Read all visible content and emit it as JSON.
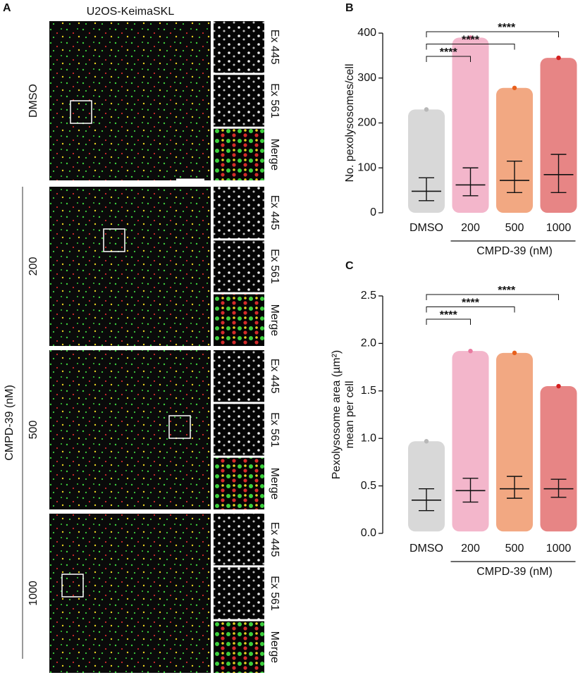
{
  "panel_a": {
    "label": "A",
    "title": "U2OS-KeimaSKL",
    "group_label": "CMPD-39 (nM)",
    "channels": [
      "Ex 445",
      "Ex 561",
      "Merge"
    ],
    "channel_colors": [
      "#2fbf2f",
      "#d42020",
      "#111111"
    ],
    "rows": [
      "DMSO",
      "200",
      "500",
      "1000"
    ]
  },
  "chart_data": [
    {
      "type": "dotplot",
      "label": "B",
      "ylabel": [
        "No. pexolysosomes/cell"
      ],
      "categories": [
        "DMSO",
        "200",
        "500",
        "1000"
      ],
      "group_label": "CMPD-39 (nM)",
      "colors": [
        "#b8b8b8",
        "#e97aa0",
        "#e8601c",
        "#d42020"
      ],
      "median": [
        48,
        62,
        72,
        85
      ],
      "q1": [
        27,
        38,
        45,
        45
      ],
      "q3": [
        78,
        100,
        115,
        130
      ],
      "min": [
        0,
        0,
        0,
        0
      ],
      "max": [
        230,
        390,
        278,
        345
      ],
      "ylim": [
        0,
        400
      ],
      "yticks": [
        0,
        100,
        200,
        300,
        400
      ],
      "comparisons": [
        {
          "groups": [
            "DMSO",
            "1000"
          ],
          "label": "****"
        },
        {
          "groups": [
            "DMSO",
            "500"
          ],
          "label": "****"
        },
        {
          "groups": [
            "DMSO",
            "200"
          ],
          "label": "****"
        }
      ]
    },
    {
      "type": "dotplot",
      "label": "C",
      "ylabel": [
        "Pexolysosome area (µm²)",
        "mean per cell"
      ],
      "categories": [
        "DMSO",
        "200",
        "500",
        "1000"
      ],
      "group_label": "CMPD-39 (nM)",
      "colors": [
        "#b8b8b8",
        "#e97aa0",
        "#e8601c",
        "#d42020"
      ],
      "median": [
        0.35,
        0.45,
        0.47,
        0.47
      ],
      "q1": [
        0.24,
        0.33,
        0.37,
        0.38
      ],
      "q3": [
        0.47,
        0.58,
        0.6,
        0.57
      ],
      "min": [
        0.02,
        0.02,
        0.02,
        0.02
      ],
      "max": [
        0.97,
        1.92,
        1.9,
        1.55
      ],
      "ylim": [
        0,
        2.5
      ],
      "yticks": [
        {
          "value": 0,
          "label": "0.0"
        },
        {
          "value": 0.5,
          "label": "0.5"
        },
        {
          "value": 1,
          "label": "1.0"
        },
        {
          "value": 1.5,
          "label": "1.5"
        },
        {
          "value": 2,
          "label": "2.0"
        },
        {
          "value": 2.5,
          "label": "2.5"
        }
      ],
      "comparisons": [
        {
          "groups": [
            "DMSO",
            "1000"
          ],
          "label": "****"
        },
        {
          "groups": [
            "DMSO",
            "500"
          ],
          "label": "****"
        },
        {
          "groups": [
            "DMSO",
            "200"
          ],
          "label": "****"
        }
      ]
    }
  ]
}
